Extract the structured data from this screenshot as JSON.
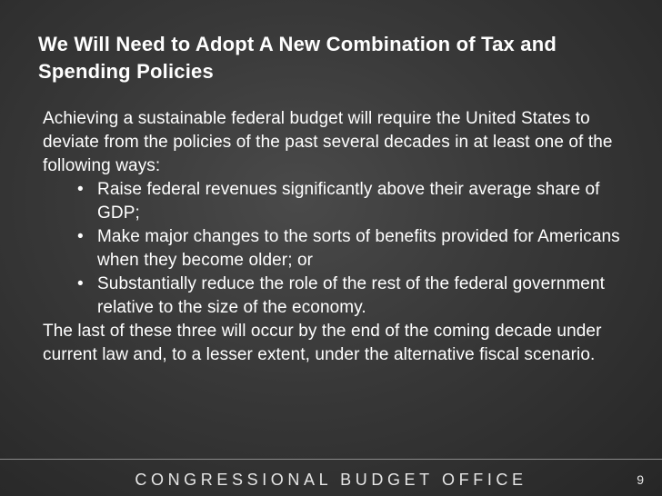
{
  "slide": {
    "title": "We Will Need to Adopt A New Combination of Tax and Spending Policies",
    "intro": "Achieving a sustainable federal budget will require the United States to deviate from the policies of the past several decades in at least one of the following ways:",
    "bullets": [
      "Raise federal revenues significantly above their average share of GDP;",
      "Make major changes to the sorts of benefits provided for Americans when they become older; or",
      "Substantially reduce the role of the rest of the federal government relative to the size of the economy."
    ],
    "closing": "The last of these three will occur by the end of the coming decade under current law and, to a lesser extent, under the alternative fiscal scenario."
  },
  "footer": {
    "organization": "CONGRESSIONAL BUDGET OFFICE",
    "page_number": "9"
  }
}
